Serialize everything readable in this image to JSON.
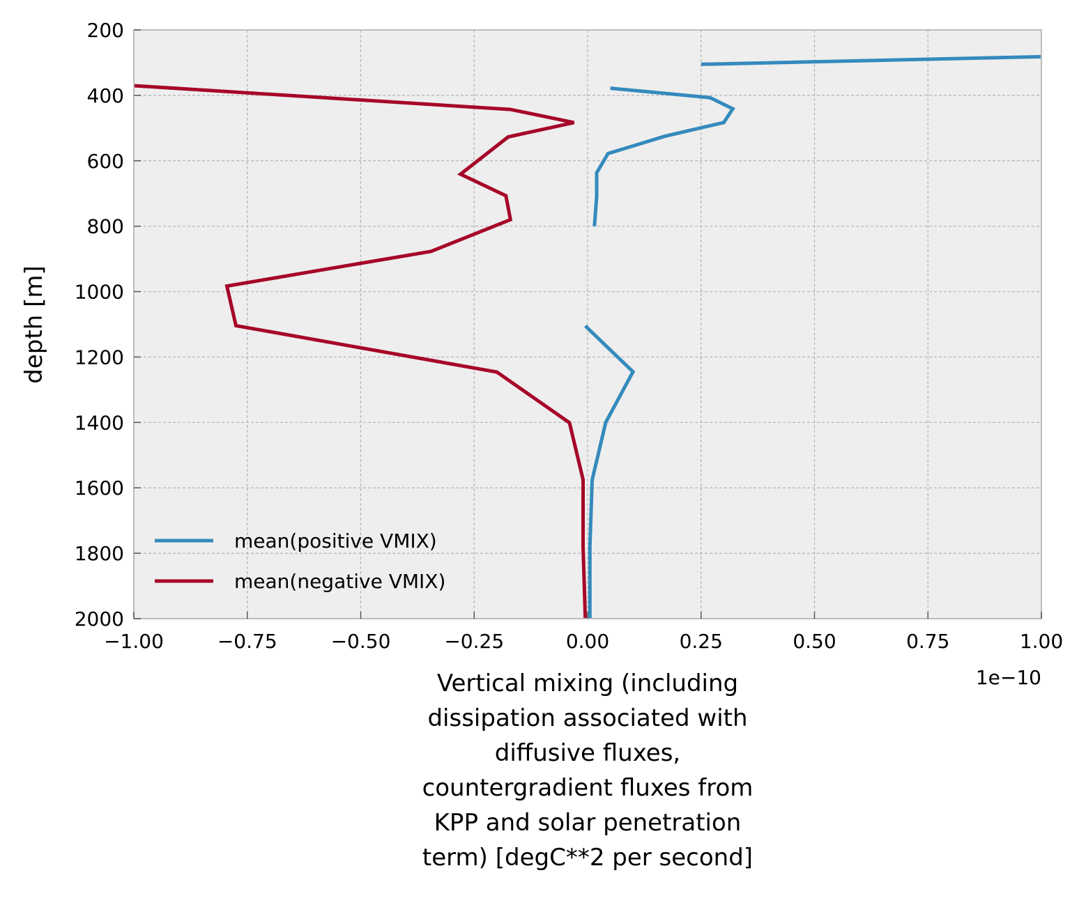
{
  "chart_data": {
    "type": "line",
    "xlabel_lines": [
      "Vertical mixing (including",
      "dissipation associated with",
      "diffusive fluxes,",
      "countergradient fluxes from",
      "KPP and solar penetration",
      "term) [degC**2 per second]"
    ],
    "ylabel": "depth [m]",
    "x_offset_text": "1e−10",
    "x_scale": 1e-10,
    "xlim": [
      -1.0,
      1.0
    ],
    "ylim": [
      2000,
      200
    ],
    "y_inverted": true,
    "x_ticks": [
      -1.0,
      -0.75,
      -0.5,
      -0.25,
      0.0,
      0.25,
      0.5,
      0.75,
      1.0
    ],
    "x_tick_labels": [
      "−1.00",
      "−0.75",
      "−0.50",
      "−0.25",
      "0.00",
      "0.25",
      "0.50",
      "0.75",
      "1.00"
    ],
    "y_ticks": [
      200,
      400,
      600,
      800,
      1000,
      1200,
      1400,
      1600,
      1800,
      2000
    ],
    "y_tick_labels": [
      "200",
      "400",
      "600",
      "800",
      "1000",
      "1200",
      "1400",
      "1600",
      "1800",
      "2000"
    ],
    "grid": true,
    "legend_position": "lower-left",
    "series": [
      {
        "name": "mean(positive VMIX)",
        "color": "#348ABD",
        "segments": [
          [
            [
              0.25,
              305
            ],
            [
              1.05,
              280
            ]
          ],
          [
            [
              0.05,
              378
            ],
            [
              0.27,
              407
            ],
            [
              0.32,
              441
            ],
            [
              0.3,
              483
            ],
            [
              0.17,
              525
            ],
            [
              0.045,
              578
            ],
            [
              0.02,
              637
            ],
            [
              0.02,
              708
            ],
            [
              0.015,
              800
            ]
          ],
          [
            [
              -0.005,
              1105
            ],
            [
              0.1,
              1245
            ],
            [
              0.04,
              1400
            ],
            [
              0.01,
              1576
            ],
            [
              0.005,
              1780
            ],
            [
              0.005,
              2000
            ]
          ]
        ]
      },
      {
        "name": "mean(negative VMIX)",
        "color": "#A60628",
        "segments": [
          [
            [
              -1.05,
              366
            ],
            [
              -0.17,
              443
            ],
            [
              -0.03,
              483
            ],
            [
              -0.175,
              527
            ],
            [
              -0.28,
              641
            ],
            [
              -0.18,
              707
            ],
            [
              -0.17,
              780
            ],
            [
              -0.345,
              877
            ],
            [
              -0.795,
              983
            ],
            [
              -0.775,
              1104
            ],
            [
              -0.2,
              1246
            ],
            [
              -0.04,
              1401
            ],
            [
              -0.01,
              1575
            ],
            [
              -0.01,
              1780
            ],
            [
              -0.005,
              2000
            ]
          ]
        ]
      }
    ]
  }
}
